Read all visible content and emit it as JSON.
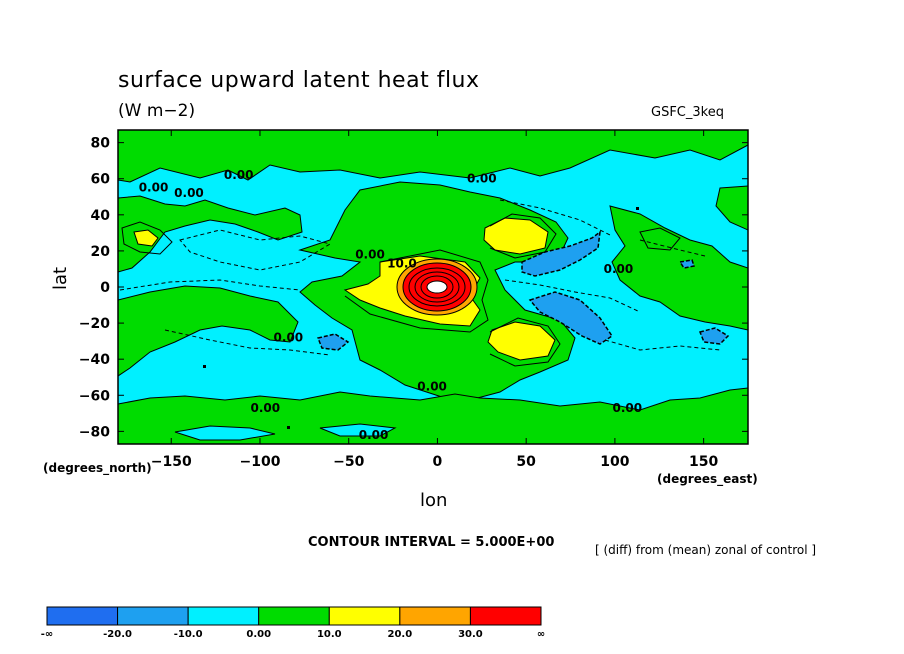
{
  "chart_data": {
    "type": "heatmap",
    "title": "surface upward latent heat flux",
    "subtitle": "(W m−2)",
    "model_label": "GSFC_3keq",
    "xlabel": "lon",
    "ylabel": "lat",
    "x_unit_label": "(degrees_east)",
    "y_unit_label": "(degrees_north)",
    "xlim": [
      -180,
      175
    ],
    "ylim": [
      -87,
      87
    ],
    "x_ticks": [
      -150,
      -100,
      -50,
      0,
      50,
      100,
      150
    ],
    "y_ticks": [
      80,
      60,
      40,
      20,
      0,
      -20,
      -40,
      -60,
      -80
    ],
    "contour_interval_text": "CONTOUR INTERVAL = 5.000E+00",
    "diff_note": "[ (diff) from (mean) zonal of control ]",
    "contour_labels": [
      {
        "text": "0.00",
        "x": -160,
        "y": 55
      },
      {
        "text": "0.00",
        "x": -140,
        "y": 52
      },
      {
        "text": "0.00",
        "x": -112,
        "y": 62
      },
      {
        "text": "0.00",
        "x": 25,
        "y": 60
      },
      {
        "text": "0.00",
        "x": -38,
        "y": 18
      },
      {
        "text": "10.0",
        "x": -20,
        "y": 13
      },
      {
        "text": "0.00",
        "x": 102,
        "y": 10
      },
      {
        "text": "0.00",
        "x": -84,
        "y": -28
      },
      {
        "text": "0.00",
        "x": -3,
        "y": -55
      },
      {
        "text": "0.00",
        "x": -97,
        "y": -67
      },
      {
        "text": "0.00",
        "x": 107,
        "y": -67
      },
      {
        "text": "0.00",
        "x": -36,
        "y": -82
      }
    ],
    "colorbar": {
      "levels": [
        "-∞",
        "-20.0",
        "-10.0",
        "0.00",
        "10.0",
        "20.0",
        "30.0",
        "∞"
      ],
      "colors": [
        "#1f6ef0",
        "#1ea0f0",
        "#00f0ff",
        "#00dc00",
        "#ffff00",
        "#ffa500",
        "#ff0000"
      ]
    }
  }
}
